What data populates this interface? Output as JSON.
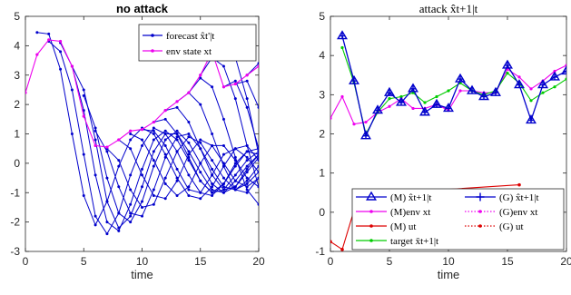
{
  "chart_data": [
    {
      "type": "line",
      "title": "no attack",
      "xlabel": "time",
      "ylabel": "",
      "xlim": [
        0,
        20
      ],
      "ylim": [
        -3,
        5
      ],
      "xticks": [
        "0",
        "5",
        "10",
        "15",
        "20"
      ],
      "yticks": [
        "-3",
        "-2",
        "-1",
        "0",
        "1",
        "2",
        "3",
        "4",
        "5"
      ],
      "grid": false,
      "legend": {
        "position": "top-right",
        "entries": [
          {
            "label": "forecast x̂t'|t",
            "color": "#0000cc",
            "marker": "dot"
          },
          {
            "label": "env state xt",
            "color": "#ee00ee",
            "marker": "dot"
          }
        ]
      },
      "env_state": {
        "color": "#ee00ee",
        "x": [
          0,
          1,
          2,
          3,
          4,
          5,
          6,
          7,
          8,
          9,
          10,
          11,
          12,
          13,
          14,
          15,
          16,
          17,
          18,
          19,
          20
        ],
        "y": [
          2.4,
          3.7,
          4.2,
          4.15,
          3.3,
          1.6,
          0.6,
          0.55,
          0.8,
          1.1,
          1.15,
          1.4,
          1.8,
          2.1,
          2.4,
          3.0,
          3.8,
          2.6,
          2.7,
          3.0,
          3.3
        ]
      },
      "forecast_color": "#0000cc",
      "forecasts": [
        {
          "x": [
            1,
            2,
            3,
            4,
            5,
            6,
            7,
            8,
            9,
            10,
            11,
            12,
            13,
            14,
            15,
            16,
            17,
            18,
            19,
            20
          ],
          "y": [
            4.45,
            4.4,
            3.2,
            1.0,
            -1.1,
            -2.1,
            -1.3,
            -0.1,
            0.8,
            1.2,
            1.0,
            0.3,
            -0.5,
            -1.1,
            -1.2,
            -0.8,
            -0.1,
            0.5,
            0.6,
            0.1
          ]
        },
        {
          "x": [
            2,
            3,
            4,
            5,
            6,
            7,
            8,
            9,
            10,
            11,
            12,
            13,
            14,
            15,
            16,
            17,
            18,
            19,
            20
          ],
          "y": [
            4.15,
            3.8,
            2.5,
            0.3,
            -1.8,
            -2.4,
            -1.7,
            -0.4,
            0.6,
            1.2,
            1.0,
            0.4,
            -0.4,
            -1.0,
            -1.1,
            -0.7,
            -0.1,
            0.4,
            0.5
          ]
        },
        {
          "x": [
            3,
            4,
            5,
            6,
            7,
            8,
            9,
            10,
            11,
            12,
            13,
            14,
            15,
            16,
            17,
            18,
            19,
            20
          ],
          "y": [
            4.1,
            3.3,
            1.8,
            -0.4,
            -2.0,
            -2.3,
            -1.4,
            -0.2,
            0.8,
            1.1,
            0.8,
            0.1,
            -0.6,
            -1.0,
            -0.9,
            -0.4,
            0.1,
            0.4
          ]
        },
        {
          "x": [
            4,
            5,
            6,
            7,
            8,
            9,
            10,
            11,
            12,
            13,
            14,
            15,
            16,
            17,
            18,
            19,
            20
          ],
          "y": [
            3.3,
            2.5,
            0.8,
            -1.3,
            -2.2,
            -1.8,
            -0.8,
            0.4,
            1.0,
            1.0,
            0.4,
            -0.3,
            -0.9,
            -1.0,
            -0.6,
            -0.1,
            0.3
          ]
        },
        {
          "x": [
            5,
            6,
            7,
            8,
            9,
            10,
            11,
            12,
            13,
            14,
            15,
            16,
            17,
            18,
            19,
            20
          ],
          "y": [
            2.3,
            1.2,
            -0.5,
            -1.7,
            -2.0,
            -1.3,
            -0.1,
            0.8,
            1.1,
            0.7,
            0.0,
            -0.7,
            -1.0,
            -0.8,
            -0.3,
            0.2
          ]
        },
        {
          "x": [
            6,
            7,
            8,
            9,
            10,
            11,
            12,
            13,
            14,
            15,
            16,
            17,
            18,
            19,
            20
          ],
          "y": [
            1.1,
            0.4,
            -0.8,
            -1.7,
            -1.8,
            -0.9,
            0.2,
            0.9,
            1.0,
            0.5,
            -0.2,
            -0.8,
            -0.9,
            -0.6,
            -0.1
          ]
        },
        {
          "x": [
            7,
            8,
            9,
            10,
            11,
            12,
            13,
            14,
            15,
            16,
            17,
            18,
            19,
            20
          ],
          "y": [
            0.5,
            0.1,
            -0.9,
            -1.5,
            -1.4,
            -0.5,
            0.4,
            0.9,
            0.7,
            0.1,
            -0.5,
            -0.9,
            -0.7,
            -0.3
          ]
        },
        {
          "x": [
            8,
            9,
            10,
            11,
            12,
            13,
            14,
            15,
            16,
            17,
            18,
            19,
            20
          ],
          "y": [
            0.8,
            0.5,
            -0.4,
            -1.1,
            -1.2,
            -0.6,
            0.3,
            0.8,
            0.6,
            0.0,
            -0.6,
            -0.8,
            -0.5
          ]
        },
        {
          "x": [
            9,
            10,
            11,
            12,
            13,
            14,
            15,
            16,
            17,
            18,
            19,
            20
          ],
          "y": [
            1.0,
            0.8,
            0.1,
            -0.7,
            -1.1,
            -0.8,
            0.0,
            0.6,
            0.6,
            0.1,
            -0.5,
            -0.8
          ]
        },
        {
          "x": [
            10,
            11,
            12,
            13,
            14,
            15,
            16,
            17,
            18,
            19,
            20
          ],
          "y": [
            1.15,
            1.1,
            0.6,
            -0.2,
            -0.9,
            -1.0,
            -0.4,
            0.3,
            0.5,
            0.2,
            -0.3
          ]
        },
        {
          "x": [
            11,
            12,
            13,
            14,
            15,
            16,
            17,
            18,
            19,
            20
          ],
          "y": [
            1.4,
            1.5,
            1.0,
            0.2,
            -0.6,
            -1.0,
            -0.7,
            0.0,
            0.4,
            0.3
          ]
        },
        {
          "x": [
            12,
            13,
            14,
            15,
            16,
            17,
            18,
            19,
            20
          ],
          "y": [
            1.8,
            1.9,
            1.4,
            0.5,
            -0.4,
            -0.9,
            -0.8,
            -0.2,
            0.3
          ]
        },
        {
          "x": [
            13,
            14,
            15,
            16,
            17,
            18,
            19,
            20
          ],
          "y": [
            2.1,
            2.4,
            2.0,
            1.0,
            -0.1,
            -0.9,
            -1.0,
            -0.5
          ]
        },
        {
          "x": [
            14,
            15,
            16,
            17,
            18,
            19,
            20
          ],
          "y": [
            2.4,
            2.9,
            2.6,
            1.5,
            0.2,
            -0.9,
            -1.4
          ]
        },
        {
          "x": [
            15,
            16,
            17,
            18,
            19,
            20
          ],
          "y": [
            3.0,
            3.6,
            3.3,
            2.2,
            0.6,
            -0.8
          ]
        },
        {
          "x": [
            16,
            17,
            18,
            19,
            20
          ],
          "y": [
            3.8,
            4.25,
            3.6,
            2.2,
            0.3
          ]
        },
        {
          "x": [
            17,
            18,
            19,
            20
          ],
          "y": [
            2.6,
            2.8,
            1.9,
            0.5
          ]
        },
        {
          "x": [
            18,
            19,
            20
          ],
          "y": [
            2.7,
            2.8,
            1.9
          ]
        },
        {
          "x": [
            19,
            20
          ],
          "y": [
            3.0,
            3.4
          ]
        }
      ]
    },
    {
      "type": "line",
      "title": "attack x̂t+1|t",
      "xlabel": "time",
      "ylabel": "",
      "xlim": [
        0,
        20
      ],
      "ylim": [
        -1,
        5
      ],
      "xticks": [
        "0",
        "5",
        "10",
        "15",
        "20"
      ],
      "yticks": [
        "-1",
        "0",
        "1",
        "2",
        "3",
        "4",
        "5"
      ],
      "grid": false,
      "legend": {
        "position": "bottom-right",
        "entries": [
          {
            "label": "(M) x̂t+1|t",
            "color": "#0000cc",
            "style": "solid",
            "marker": "triangle"
          },
          {
            "label": "(M)env xt",
            "color": "#ee00ee",
            "style": "solid",
            "marker": "dot"
          },
          {
            "label": "(M) ut",
            "color": "#dd0000",
            "style": "solid",
            "marker": "dot"
          },
          {
            "label": "target x̄t+1|t",
            "color": "#00cc00",
            "style": "solid",
            "marker": "dot"
          },
          {
            "label": "(G) x̂t+1|t",
            "color": "#0000cc",
            "style": "solid",
            "marker": "plus"
          },
          {
            "label": "(G)env xt",
            "color": "#ee00ee",
            "style": "dotted",
            "marker": "dot"
          },
          {
            "label": "(G) ut",
            "color": "#dd0000",
            "style": "dotted",
            "marker": "dot"
          }
        ]
      },
      "series": [
        {
          "name": "(M) x̂t+1|t",
          "color": "#0000cc",
          "x": [
            1,
            2,
            3,
            4,
            5,
            6,
            7,
            8,
            9,
            10,
            11,
            12,
            13,
            14,
            15,
            16,
            17,
            18,
            19,
            20
          ],
          "y": [
            4.5,
            3.35,
            1.95,
            2.6,
            3.05,
            2.8,
            3.15,
            2.55,
            2.75,
            2.65,
            3.4,
            3.1,
            2.95,
            3.05,
            3.75,
            3.25,
            2.35,
            3.25,
            3.45,
            3.6
          ]
        },
        {
          "name": "(M)env xt",
          "color": "#ee00ee",
          "x": [
            0,
            1,
            2,
            3,
            4,
            5,
            6,
            7,
            8,
            9,
            10,
            11,
            12,
            13,
            14,
            15,
            16,
            17,
            18,
            19,
            20
          ],
          "y": [
            2.4,
            2.95,
            2.25,
            2.3,
            2.55,
            2.7,
            2.9,
            2.65,
            2.65,
            2.75,
            2.6,
            3.1,
            3.1,
            3.05,
            3.05,
            3.65,
            3.45,
            3.15,
            3.35,
            3.6,
            3.75
          ]
        },
        {
          "name": "target x̄t+1|t",
          "color": "#00cc00",
          "x": [
            1,
            2,
            3,
            4,
            5,
            6,
            7,
            8,
            9,
            10,
            11,
            12,
            13,
            14,
            15,
            16,
            17,
            18,
            19,
            20
          ],
          "y": [
            4.2,
            3.3,
            2.0,
            2.55,
            2.9,
            2.95,
            3.05,
            2.8,
            2.95,
            3.1,
            3.3,
            3.1,
            3.0,
            3.1,
            3.55,
            3.3,
            2.85,
            3.05,
            3.2,
            3.4
          ]
        },
        {
          "name": "(M) ut",
          "color": "#dd0000",
          "x": [
            0,
            1,
            2,
            3,
            16
          ],
          "y": [
            -0.75,
            -0.95,
            0.05,
            0.45,
            0.7
          ]
        }
      ]
    }
  ]
}
